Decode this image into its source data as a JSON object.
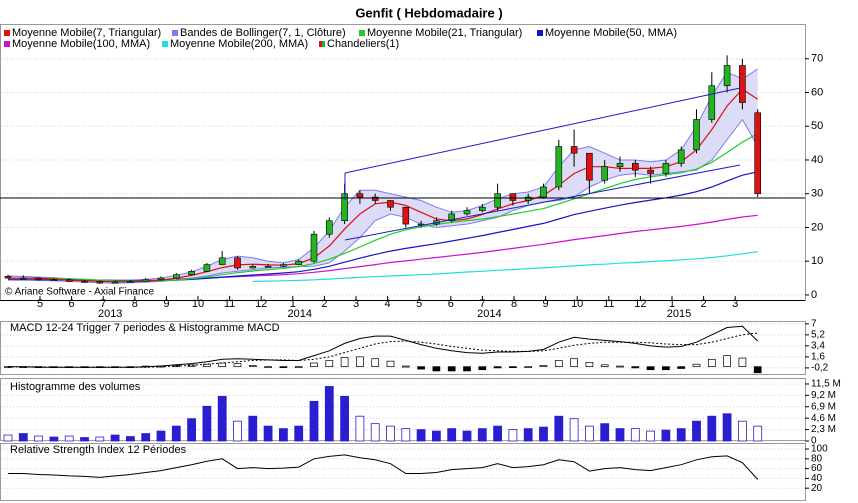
{
  "chart_data": [
    {
      "type": "candlestick",
      "title": "Genfit  ( Hebdomadaire )",
      "credit": "© Ariane Software - Axial Finance",
      "months": [
        "5",
        "6",
        "7",
        "8",
        "9",
        "10",
        "11",
        "12",
        "1",
        "2",
        "3",
        "4",
        "5",
        "6",
        "7",
        "8",
        "9",
        "10",
        "11",
        "12",
        "1",
        "2",
        "3"
      ],
      "years": [
        null,
        null,
        "2013",
        null,
        null,
        null,
        null,
        null,
        "2014",
        null,
        null,
        null,
        null,
        null,
        "2014",
        null,
        null,
        null,
        null,
        null,
        "2015",
        null,
        null
      ],
      "ylim": [
        -1.5,
        80
      ],
      "yticks": [
        0,
        10,
        20,
        30,
        40,
        50,
        60,
        70
      ],
      "grid": true,
      "candles": {
        "name": "Chandeliers(1)",
        "up_color": "#22b522",
        "down_color": "#dd1111",
        "open": [
          5.5,
          5,
          5,
          4.5,
          4.5,
          4,
          4,
          3.5,
          3.8,
          4,
          4.5,
          5,
          6,
          7,
          9,
          11,
          8,
          8.5,
          8.5,
          9,
          10,
          18,
          22,
          30,
          29,
          28,
          26,
          21,
          21,
          22,
          24,
          25,
          26,
          30,
          28,
          29,
          32,
          44,
          42,
          34,
          38,
          39,
          37,
          36,
          39,
          43,
          52,
          62,
          68,
          54
        ],
        "high": [
          6,
          5.8,
          5.3,
          5,
          4.8,
          4.5,
          4.3,
          4.2,
          4.4,
          5,
          5.5,
          6.5,
          7.5,
          9.5,
          13,
          11.5,
          9,
          9.2,
          9.5,
          10.5,
          19,
          23,
          33,
          31,
          30,
          28,
          26,
          22,
          23,
          25,
          26,
          27,
          33,
          30,
          30,
          33,
          46,
          49,
          42,
          40,
          41,
          40,
          38,
          40,
          44,
          55,
          66,
          71,
          70,
          55
        ],
        "low": [
          4.8,
          4.6,
          4.2,
          4.2,
          3.8,
          3.7,
          3.3,
          3.4,
          3.7,
          3.9,
          4.3,
          4.8,
          5.8,
          6.8,
          8.8,
          7.5,
          7.8,
          8.1,
          8.2,
          8.8,
          9.5,
          17,
          21,
          27,
          27,
          25,
          20,
          20,
          20.5,
          21.5,
          23.5,
          24.5,
          25,
          26.5,
          27,
          28.5,
          31,
          38,
          30,
          33,
          36.5,
          35,
          33,
          35,
          38,
          42,
          51,
          60,
          55,
          29
        ],
        "close": [
          5,
          5,
          4.5,
          4.5,
          4,
          4,
          3.5,
          3.8,
          4,
          4.5,
          5,
          6,
          7,
          9,
          11,
          8,
          8.5,
          8.5,
          9,
          10,
          18,
          22,
          30,
          29,
          28,
          26,
          21,
          21,
          22,
          24,
          25,
          26,
          30,
          28,
          29,
          32,
          44,
          42,
          34,
          38,
          39,
          37,
          36,
          39,
          43,
          52,
          62,
          68,
          57,
          30
        ]
      },
      "bands": {
        "name": "Bandes de Bollinger(7, 1, Clôture)",
        "color": "#7c7cf0",
        "fill": "#dcdcf6",
        "upper": [
          5.6,
          5.5,
          5.3,
          5.1,
          4.8,
          4.6,
          4.4,
          4.3,
          4.3,
          4.6,
          5,
          5.8,
          6.8,
          8.5,
          10.5,
          11.5,
          11,
          10,
          9.5,
          10.5,
          14,
          19,
          26,
          31,
          31,
          30,
          29,
          28,
          26,
          24.5,
          25,
          26.5,
          28.5,
          30,
          30.5,
          32,
          38,
          43,
          44,
          42,
          40,
          40,
          39.5,
          40,
          43,
          50,
          59,
          66,
          64,
          67
        ],
        "lower": [
          4.6,
          4.5,
          4.3,
          4.2,
          4,
          3.8,
          3.6,
          3.5,
          3.6,
          3.8,
          4,
          4.4,
          5,
          5.6,
          6.5,
          7,
          7.5,
          8,
          8.2,
          8.4,
          8.5,
          9.5,
          13,
          17,
          22,
          24,
          23,
          21,
          20,
          20.5,
          21,
          22,
          23,
          25,
          26.5,
          27.5,
          28,
          29,
          32,
          34,
          35.5,
          36,
          35.5,
          36,
          36.5,
          37,
          40,
          46,
          52,
          44
        ]
      },
      "series": [
        {
          "name": "Moyenne Mobile(7, Triangular)",
          "color": "#e01010",
          "values": [
            5,
            5,
            4.9,
            4.7,
            4.4,
            4.2,
            4,
            3.9,
            3.9,
            4.1,
            4.4,
            5,
            5.8,
            6.9,
            8.1,
            8.9,
            9.1,
            8.9,
            8.8,
            9.3,
            11,
            14.5,
            19.5,
            24,
            27,
            27.5,
            26.5,
            24.5,
            22.5,
            22,
            22.5,
            23.8,
            25.5,
            27,
            28,
            29.5,
            32.5,
            36,
            38,
            38,
            37.5,
            37.5,
            37.5,
            38,
            39.5,
            43,
            49,
            56,
            61,
            58
          ]
        },
        {
          "name": "Moyenne Mobile(21, Triangular)",
          "color": "#22cc22",
          "values": [
            5,
            5,
            5,
            4.9,
            4.8,
            4.6,
            4.4,
            4.2,
            4.1,
            4.1,
            4.2,
            4.4,
            4.8,
            5.3,
            6,
            6.6,
            7.1,
            7.5,
            7.9,
            8.4,
            9.3,
            10.6,
            12.3,
            14.2,
            16.2,
            18,
            19.3,
            20.2,
            20.9,
            21.5,
            22,
            22.5,
            23.2,
            24,
            24.8,
            25.6,
            27,
            28.5,
            30,
            31.5,
            33,
            34.2,
            35,
            35.6,
            36.2,
            37.3,
            39.3,
            42.2,
            45.3,
            47.8
          ]
        },
        {
          "name": "Moyenne Mobile(50, MMA)",
          "color": "#1515c8",
          "values": [
            4.5,
            4.5,
            4.5,
            4.5,
            4.5,
            4.4,
            4.4,
            4.3,
            4.3,
            4.3,
            4.3,
            4.4,
            4.6,
            4.9,
            5.3,
            5.6,
            5.9,
            6.2,
            6.5,
            6.9,
            7.6,
            8.5,
            9.7,
            10.9,
            12,
            13,
            13.8,
            14.5,
            15.2,
            16,
            16.8,
            17.6,
            18.5,
            19.4,
            20.3,
            21.2,
            22.5,
            23.8,
            24.8,
            25.7,
            26.6,
            27.4,
            28.1,
            28.8,
            29.6,
            30.6,
            32,
            33.8,
            35.5,
            36.5
          ]
        },
        {
          "name": "Moyenne Mobile(100, MMA)",
          "color": "#cc11cc",
          "values": [
            null,
            null,
            null,
            null,
            null,
            null,
            null,
            null,
            null,
            null,
            null,
            4.7,
            4.8,
            5,
            5.2,
            5.4,
            5.6,
            5.8,
            6,
            6.3,
            6.7,
            7.2,
            7.8,
            8.4,
            9,
            9.6,
            10.1,
            10.6,
            11.1,
            11.6,
            12.1,
            12.6,
            13.2,
            13.8,
            14.4,
            15,
            15.7,
            16.4,
            17,
            17.6,
            18.2,
            18.8,
            19.3,
            19.8,
            20.3,
            20.9,
            21.6,
            22.4,
            23.1,
            23.6
          ]
        },
        {
          "name": "Moyenne Mobile(200, MMA)",
          "color": "#22dddd",
          "values": [
            null,
            null,
            null,
            null,
            null,
            null,
            null,
            null,
            null,
            null,
            null,
            null,
            null,
            null,
            null,
            null,
            4,
            4.1,
            4.2,
            4.3,
            4.5,
            4.7,
            5,
            5.2,
            5.4,
            5.6,
            5.8,
            6,
            6.2,
            6.5,
            6.8,
            7,
            7.3,
            7.5,
            7.8,
            8,
            8.3,
            8.6,
            8.9,
            9.1,
            9.4,
            9.6,
            9.9,
            10.1,
            10.4,
            10.7,
            11.1,
            11.6,
            12.2,
            12.8
          ]
        }
      ]
    },
    {
      "type": "macd",
      "title": "MACD 12-24   Trigger 7 periodes & Histogramme MACD",
      "ylim": [
        -1.2,
        7.3
      ],
      "yticks": [
        7,
        {
          "value": 5.2,
          "label": "5,2"
        },
        {
          "value": 3.4,
          "label": "3,4"
        },
        {
          "value": 1.6,
          "label": "1,6"
        },
        {
          "value": -0.2,
          "label": "-0,2"
        }
      ],
      "lines": [
        {
          "color": "#000000",
          "style": "solid",
          "values": [
            0,
            0,
            -0.1,
            -0.1,
            -0.1,
            -0.1,
            -0.1,
            -0.1,
            -0.1,
            0,
            0.1,
            0.3,
            0.5,
            0.8,
            1.2,
            1.3,
            1.2,
            1.1,
            1,
            1,
            1.8,
            2.6,
            3.8,
            4.6,
            5,
            5,
            4.3,
            3.6,
            3,
            2.6,
            2.3,
            2.2,
            2.4,
            2.4,
            2.5,
            2.8,
            4,
            4.8,
            4.5,
            4.3,
            4.1,
            3.8,
            3.4,
            3.2,
            3.3,
            4,
            5.2,
            6.4,
            6.6,
            4.2
          ]
        },
        {
          "color": "#000000",
          "style": "dotted",
          "values": [
            0,
            0,
            0,
            -0.1,
            -0.1,
            -0.1,
            -0.1,
            -0.1,
            -0.1,
            -0.1,
            0,
            0.1,
            0.2,
            0.4,
            0.6,
            0.8,
            1,
            1.1,
            1.1,
            1,
            1.2,
            1.6,
            2.3,
            3,
            3.7,
            4.1,
            4.2,
            4,
            3.7,
            3.3,
            3,
            2.7,
            2.6,
            2.5,
            2.5,
            2.6,
            3,
            3.5,
            3.8,
            4,
            4,
            4,
            3.9,
            3.7,
            3.6,
            3.6,
            4,
            4.6,
            5.2,
            5.5
          ]
        }
      ],
      "histogram": [
        0,
        0,
        -0.1,
        0,
        0,
        0,
        0,
        0,
        0,
        0.1,
        0.1,
        0.2,
        0.3,
        0.4,
        0.6,
        0.5,
        0.2,
        0,
        -0.1,
        0,
        0.6,
        1,
        1.5,
        1.6,
        1.3,
        0.9,
        0.1,
        -0.4,
        -0.7,
        -0.7,
        -0.7,
        -0.5,
        -0.2,
        -0.1,
        0,
        0.2,
        1,
        1.3,
        0.7,
        0.3,
        0.1,
        -0.2,
        -0.5,
        -0.5,
        -0.3,
        0.4,
        1.2,
        1.8,
        1.4,
        -1
      ]
    },
    {
      "type": "bar",
      "title": "Histogramme des volumes",
      "up_color": "#2a1fcf",
      "down_color": "#ffffff",
      "ylim": [
        0,
        12500000
      ],
      "yticks": [
        0,
        {
          "value": 2300000,
          "label": "2,3 M"
        },
        {
          "value": 4600000,
          "label": "4,6 M"
        },
        {
          "value": 6900000,
          "label": "6,9 M"
        },
        {
          "value": 9200000,
          "label": "9,2 M"
        },
        {
          "value": 11500000,
          "label": "11,5 M"
        }
      ],
      "values": [
        1200000,
        1500000,
        1000000,
        800000,
        1000000,
        700000,
        800000,
        1200000,
        900000,
        1500000,
        2000000,
        3000000,
        4500000,
        7000000,
        9000000,
        4000000,
        5000000,
        3000000,
        2500000,
        3000000,
        8000000,
        11000000,
        9000000,
        5000000,
        3500000,
        3000000,
        2500000,
        2300000,
        2000000,
        2500000,
        2000000,
        2500000,
        3000000,
        2300000,
        2500000,
        2800000,
        5000000,
        4500000,
        3000000,
        3500000,
        2500000,
        2500000,
        2000000,
        2200000,
        2500000,
        4000000,
        5000000,
        5500000,
        4000000,
        3000000
      ]
    },
    {
      "type": "line",
      "title": "Relative Strength Index 12 Périodes",
      "color": "#000000",
      "ylim": [
        0,
        100
      ],
      "yticks": [
        20,
        40,
        60,
        80,
        100
      ],
      "values": [
        50,
        50,
        48,
        47,
        45,
        44,
        42,
        45,
        48,
        52,
        56,
        62,
        68,
        75,
        80,
        60,
        62,
        60,
        61,
        63,
        80,
        85,
        88,
        82,
        78,
        70,
        50,
        50,
        52,
        58,
        60,
        62,
        70,
        62,
        64,
        68,
        78,
        74,
        55,
        60,
        62,
        58,
        56,
        62,
        68,
        78,
        84,
        86,
        72,
        38
      ]
    }
  ]
}
